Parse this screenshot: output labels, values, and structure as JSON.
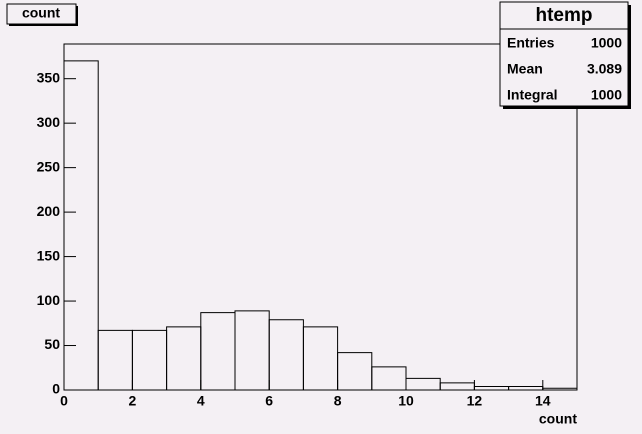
{
  "chart_data": {
    "type": "histogram",
    "title": "count",
    "x_label": "count",
    "bins": [
      0,
      1,
      2,
      3,
      4,
      5,
      6,
      7,
      8,
      9,
      10,
      11,
      12,
      13,
      14,
      15
    ],
    "values": [
      370,
      67,
      67,
      71,
      87,
      89,
      79,
      71,
      42,
      26,
      13,
      8,
      4,
      4,
      2
    ],
    "color": "#000000",
    "xlim": [
      0,
      15
    ],
    "xticks": [
      0,
      2,
      4,
      6,
      8,
      10,
      12,
      14
    ],
    "ylim": [
      0,
      389
    ],
    "yticks": [
      0,
      50,
      100,
      150,
      200,
      250,
      300,
      350
    ],
    "stats": {
      "title": "htemp",
      "rows": [
        [
          "Entries",
          1000
        ],
        [
          "Mean",
          3.089
        ],
        [
          "Integral",
          1000
        ]
      ]
    }
  }
}
